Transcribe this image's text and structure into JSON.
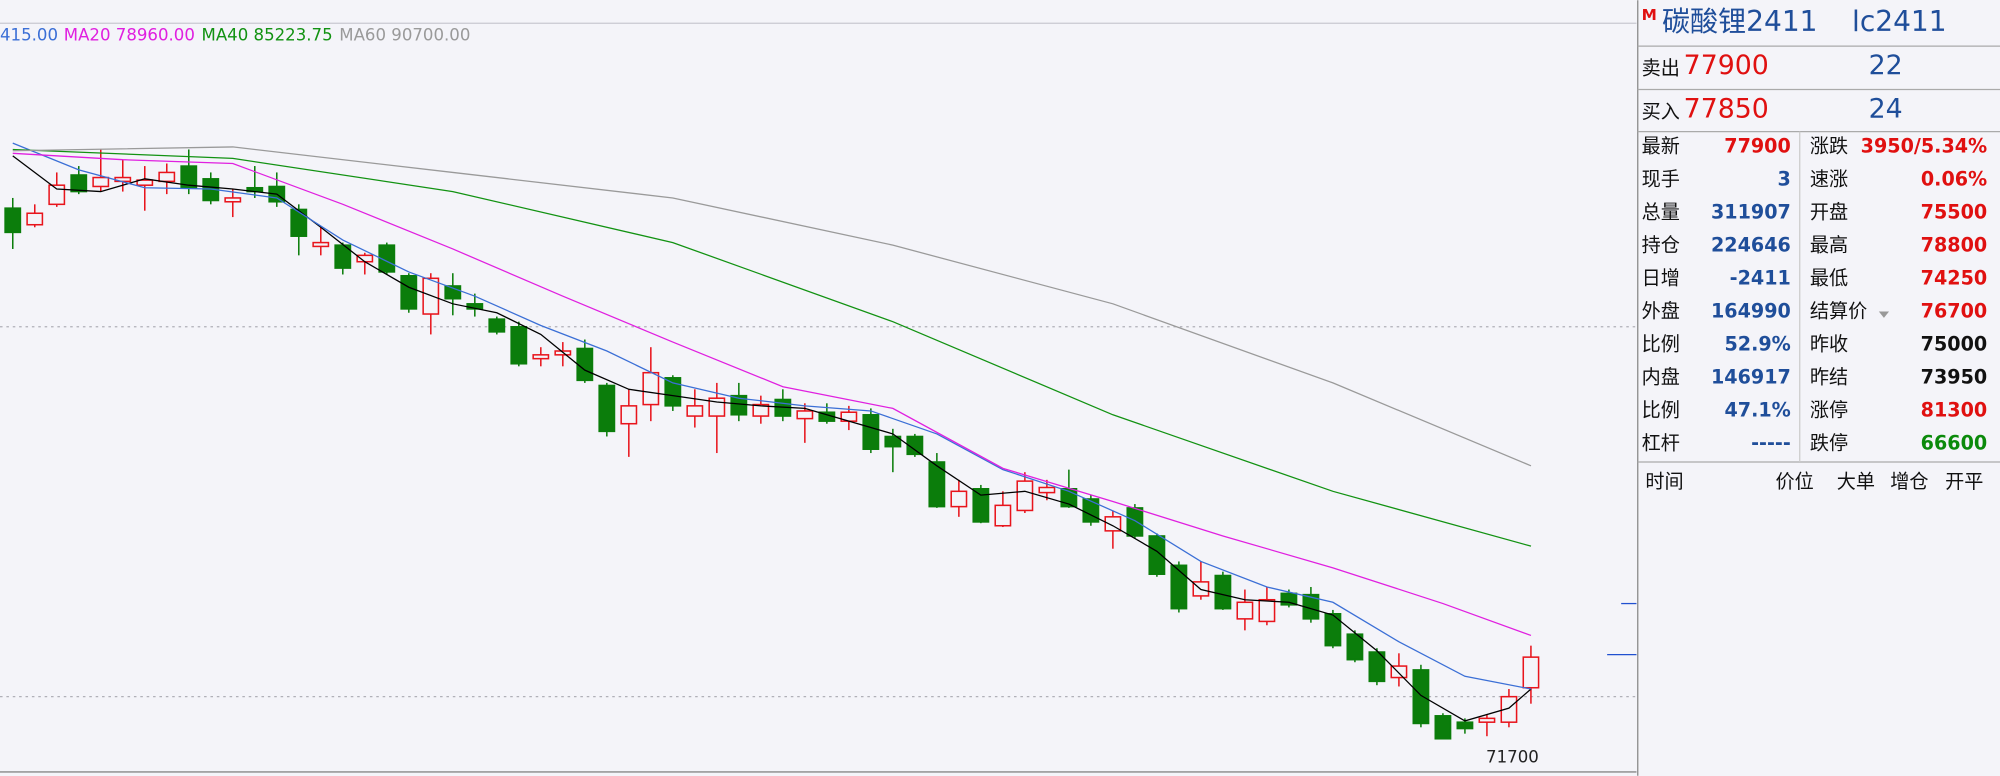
{
  "chart_data": {
    "type": "candlestick",
    "ylim": [
      68800,
      129400
    ],
    "open": [
      113100,
      111800,
      113400,
      115700,
      114800,
      115200,
      114900,
      115200,
      116400,
      115400,
      113600,
      114700,
      114800,
      113000,
      110100,
      110200,
      108900,
      110200,
      107800,
      104800,
      107000,
      105600,
      104400,
      103800,
      101300,
      101600,
      102100,
      99200,
      96200,
      97700,
      99800,
      96800,
      96800,
      98400,
      96800,
      98100,
      96600,
      97100,
      96400,
      96900,
      95200,
      95200,
      93200,
      89700,
      91100,
      88200,
      89400,
      90800,
      91100,
      90300,
      87800,
      89600,
      87400,
      85100,
      82700,
      84300,
      80900,
      80700,
      82900,
      82800,
      81300,
      79700,
      78300,
      76300,
      76900,
      73300,
      72800,
      72800,
      72800,
      75500
    ],
    "high": [
      113900,
      113400,
      115900,
      116400,
      117700,
      116900,
      116400,
      116600,
      117700,
      115900,
      114600,
      116400,
      115900,
      113400,
      111600,
      110400,
      109600,
      110400,
      108000,
      108000,
      108000,
      106400,
      104600,
      104200,
      102200,
      102600,
      102800,
      99400,
      98900,
      102200,
      100000,
      98900,
      99400,
      99400,
      98400,
      98900,
      97800,
      97800,
      97600,
      97400,
      95800,
      95400,
      93900,
      91800,
      91400,
      90900,
      92400,
      91800,
      92600,
      90600,
      89400,
      89900,
      87600,
      85400,
      85400,
      84600,
      83200,
      83400,
      83200,
      83400,
      81600,
      80000,
      78600,
      78200,
      77300,
      73500,
      73100,
      73400,
      75400,
      78800
    ],
    "low": [
      109900,
      111600,
      113200,
      114200,
      114400,
      114400,
      112900,
      114200,
      114200,
      113400,
      112400,
      113900,
      113200,
      109400,
      109400,
      107900,
      107900,
      107900,
      104900,
      103200,
      104700,
      104600,
      103200,
      100700,
      100700,
      100700,
      99400,
      95200,
      93600,
      96400,
      97200,
      95900,
      93900,
      96400,
      96200,
      96400,
      94700,
      96200,
      95700,
      93900,
      92400,
      93600,
      89600,
      88900,
      88400,
      88100,
      89200,
      90200,
      89600,
      88200,
      86400,
      87200,
      84200,
      81400,
      82400,
      81600,
      80000,
      80400,
      81800,
      80600,
      78600,
      77500,
      75700,
      75600,
      72400,
      71800,
      71900,
      71700,
      72400,
      74250
    ],
    "close": [
      111200,
      112700,
      114900,
      114400,
      115500,
      115500,
      115300,
      115900,
      114700,
      113700,
      113900,
      114400,
      113600,
      110900,
      110400,
      108400,
      109400,
      108100,
      105200,
      107600,
      106000,
      105200,
      103400,
      100900,
      101600,
      101900,
      99600,
      95600,
      97600,
      100200,
      97600,
      97600,
      98200,
      96900,
      97700,
      96800,
      97200,
      96400,
      97100,
      94200,
      94400,
      93800,
      89700,
      90900,
      88500,
      89800,
      91700,
      91200,
      89700,
      88500,
      88900,
      87400,
      84400,
      81700,
      83800,
      81700,
      82200,
      82400,
      82000,
      80900,
      78800,
      77700,
      76000,
      77200,
      72700,
      71500,
      72300,
      73100,
      74800,
      77900
    ],
    "low_label": 71700,
    "series": [
      {
        "color": "#000000",
        "x": [
          0,
          2,
          4,
          6,
          8,
          10,
          12,
          14,
          16,
          18,
          20,
          22,
          24,
          26,
          28,
          30,
          32,
          34,
          36,
          38,
          40,
          42,
          44,
          46,
          48,
          50,
          52,
          54,
          56,
          58,
          60,
          62,
          64,
          66,
          68,
          69
        ],
        "values": [
          117200,
          114600,
          114400,
          115400,
          114900,
          114600,
          114200,
          111600,
          108900,
          106900,
          105600,
          104900,
          103200,
          100400,
          98900,
          98400,
          97900,
          97600,
          97400,
          96400,
          95400,
          92900,
          90600,
          90900,
          89900,
          88200,
          86200,
          83200,
          82400,
          82200,
          81200,
          78400,
          74900,
          72900,
          73900,
          75400
        ]
      },
      {
        "color": "#3b6fd6",
        "label": "415.00",
        "x": [
          0,
          3,
          6,
          9,
          12,
          15,
          18,
          21,
          24,
          27,
          30,
          33,
          36,
          39,
          42,
          45,
          48,
          51,
          54,
          57,
          60,
          63,
          66,
          69
        ],
        "values": [
          118200,
          116100,
          114700,
          114600,
          113900,
          110600,
          108100,
          106200,
          103900,
          101900,
          99400,
          98200,
          97600,
          97200,
          95400,
          92600,
          90900,
          88600,
          85400,
          83400,
          82200,
          79100,
          76400,
          75400
        ]
      },
      {
        "color": "#e020e0",
        "label": "MA20 78960.00",
        "x": [
          0,
          5,
          10,
          15,
          20,
          25,
          30,
          35,
          40,
          45,
          50,
          55,
          60,
          65,
          69
        ],
        "values": [
          117400,
          116900,
          116600,
          113400,
          109900,
          106200,
          102600,
          99100,
          97400,
          92700,
          90100,
          87400,
          84900,
          82100,
          79600
        ]
      },
      {
        "color": "#129212",
        "label": "MA40 85223.75",
        "x": [
          0,
          10,
          20,
          30,
          40,
          50,
          60,
          69
        ],
        "values": [
          117700,
          117000,
          114400,
          110400,
          104200,
          96900,
          90900,
          86600
        ]
      },
      {
        "color": "#9a9a9a",
        "label": "MA60 90700.00",
        "x": [
          0,
          10,
          20,
          30,
          40,
          50,
          60,
          69
        ],
        "values": [
          117600,
          117900,
          115900,
          113900,
          110200,
          105600,
          99400,
          92900
        ]
      }
    ]
  },
  "quote_panel": {
    "marker": "M",
    "name": "碳酸锂2411",
    "code": "lc2411",
    "sell": {
      "label": "卖出",
      "price": "77900",
      "volume": "22"
    },
    "buy": {
      "label": "买入",
      "price": "77850",
      "volume": "24"
    },
    "rows": [
      [
        "最新",
        "77900",
        "涨跌",
        "3950/5.34%"
      ],
      [
        "现手",
        "3",
        "速涨",
        "0.06%"
      ],
      [
        "总量",
        "311907",
        "开盘",
        "75500"
      ],
      [
        "持仓",
        "224646",
        "最高",
        "78800"
      ],
      [
        "日增",
        "-2411",
        "最低",
        "74250"
      ],
      [
        "外盘",
        "164990",
        "结算价",
        "76700"
      ],
      [
        "比例",
        "52.9%",
        "昨收",
        "75000"
      ],
      [
        "内盘",
        "146917",
        "昨结",
        "73950"
      ],
      [
        "比例",
        "47.1%",
        "涨停",
        "81300"
      ],
      [
        "杠杆",
        "-----",
        "跌停",
        "66600"
      ]
    ],
    "ticks_header": [
      "时间",
      "价位",
      "大单",
      "增仓",
      "开平"
    ]
  }
}
